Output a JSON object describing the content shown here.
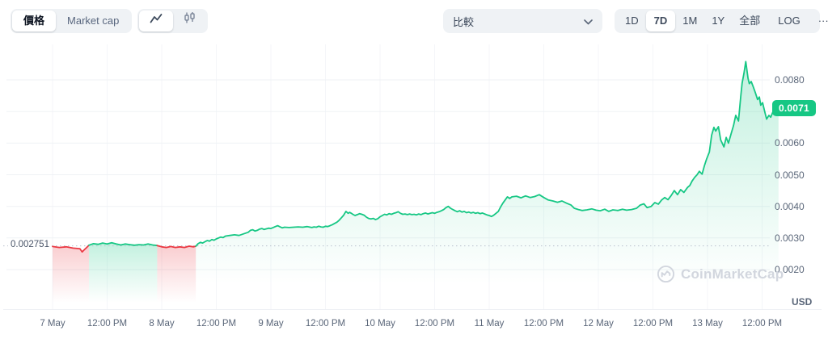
{
  "toolbar": {
    "view_tabs": [
      {
        "label": "價格",
        "active": true
      },
      {
        "label": "Market cap",
        "active": false
      }
    ],
    "chart_type": [
      {
        "icon": "line-chart-icon",
        "active": true
      },
      {
        "icon": "candlestick-icon",
        "active": false
      }
    ],
    "compare": {
      "label": "比較"
    },
    "active_range": "7D",
    "ranges": [
      {
        "label": "1D"
      },
      {
        "label": "7D",
        "active": true
      },
      {
        "label": "1M"
      },
      {
        "label": "1Y"
      },
      {
        "label": "全部"
      },
      {
        "label": "LOG",
        "divider_before": true
      },
      {
        "label": "···",
        "divider_before": true
      }
    ]
  },
  "watermark": {
    "label": "CoinMarketCap"
  },
  "chart_data": {
    "type": "line",
    "title": "7D cryptocurrency price chart",
    "unit": "USD",
    "xlabel": "",
    "ylabel": "",
    "ylim": [
      0.0016,
      0.0088
    ],
    "grid": true,
    "colors": {
      "up": "#16c784",
      "down": "#ea3943"
    },
    "baseline": {
      "value": 0.002751,
      "label": "0.002751"
    },
    "current": {
      "value": 0.0071,
      "label": "0.0071"
    },
    "y_grid": [
      0.008,
      0.007,
      0.006,
      0.005,
      0.004,
      0.003,
      0.002
    ],
    "y_ticks": [
      {
        "label": "0.0080",
        "value": 0.008
      },
      {
        "label": "0.0060",
        "value": 0.006
      },
      {
        "label": "0.0050",
        "value": 0.005
      },
      {
        "label": "0.0040",
        "value": 0.004
      },
      {
        "label": "0.0030",
        "value": 0.003
      },
      {
        "label": "0.0020",
        "value": 0.002
      }
    ],
    "x_ticks": [
      {
        "label": "7 May",
        "t": 0
      },
      {
        "label": "12:00 PM",
        "t": 12
      },
      {
        "label": "8 May",
        "t": 24
      },
      {
        "label": "12:00 PM",
        "t": 36
      },
      {
        "label": "9 May",
        "t": 48
      },
      {
        "label": "12:00 PM",
        "t": 60
      },
      {
        "label": "10 May",
        "t": 72
      },
      {
        "label": "12:00 PM",
        "t": 84
      },
      {
        "label": "11 May",
        "t": 96
      },
      {
        "label": "12:00 PM",
        "t": 108
      },
      {
        "label": "12 May",
        "t": 120
      },
      {
        "label": "12:00 PM",
        "t": 132
      },
      {
        "label": "13 May",
        "t": 144
      },
      {
        "label": "12:00 PM",
        "t": 156
      }
    ],
    "series": [
      {
        "name": "price_usd",
        "t_unit": "hours_since_7_may_00:00",
        "points": [
          [
            0,
            0.00273
          ],
          [
            1.5,
            0.0027
          ],
          [
            3,
            0.00272
          ],
          [
            4.5,
            0.00268
          ],
          [
            6,
            0.00266
          ],
          [
            6.5,
            0.00256
          ],
          [
            7,
            0.00263
          ],
          [
            7.5,
            0.0027
          ],
          [
            8,
            0.00277
          ],
          [
            9,
            0.00282
          ],
          [
            10,
            0.0028
          ],
          [
            11,
            0.00284
          ],
          [
            12,
            0.00281
          ],
          [
            13,
            0.00285
          ],
          [
            14,
            0.00281
          ],
          [
            15,
            0.00278
          ],
          [
            16,
            0.00281
          ],
          [
            17,
            0.00279
          ],
          [
            18,
            0.00277
          ],
          [
            19,
            0.00279
          ],
          [
            20,
            0.00278
          ],
          [
            21,
            0.00281
          ],
          [
            22,
            0.00278
          ],
          [
            23,
            0.00276
          ],
          [
            24,
            0.00272
          ],
          [
            25,
            0.0027
          ],
          [
            26,
            0.00273
          ],
          [
            27,
            0.0027
          ],
          [
            28,
            0.00272
          ],
          [
            29,
            0.0027
          ],
          [
            30,
            0.00274
          ],
          [
            31,
            0.00272
          ],
          [
            31.5,
            0.00274
          ],
          [
            32,
            0.00282
          ],
          [
            32.5,
            0.00286
          ],
          [
            33,
            0.00284
          ],
          [
            33.5,
            0.00288
          ],
          [
            34,
            0.00292
          ],
          [
            34.5,
            0.0029
          ],
          [
            35,
            0.00295
          ],
          [
            35.5,
            0.00293
          ],
          [
            36,
            0.00297
          ],
          [
            36.5,
            0.003
          ],
          [
            37,
            0.00303
          ],
          [
            37.5,
            0.00301
          ],
          [
            38,
            0.00306
          ],
          [
            39,
            0.00308
          ],
          [
            40,
            0.0031
          ],
          [
            41,
            0.00308
          ],
          [
            42,
            0.00313
          ],
          [
            43,
            0.00318
          ],
          [
            43.5,
            0.00324
          ],
          [
            44,
            0.00326
          ],
          [
            44.5,
            0.00322
          ],
          [
            45,
            0.00324
          ],
          [
            45.5,
            0.00328
          ],
          [
            46,
            0.0033
          ],
          [
            46.5,
            0.00327
          ],
          [
            47,
            0.00329
          ],
          [
            47.5,
            0.00331
          ],
          [
            48,
            0.0033
          ],
          [
            48.5,
            0.00333
          ],
          [
            49,
            0.00336
          ],
          [
            49.5,
            0.00339
          ],
          [
            50,
            0.00335
          ],
          [
            50.5,
            0.00332
          ],
          [
            51,
            0.00334
          ],
          [
            52,
            0.00333
          ],
          [
            53,
            0.00334
          ],
          [
            54,
            0.00335
          ],
          [
            55,
            0.00334
          ],
          [
            56,
            0.00336
          ],
          [
            57,
            0.00333
          ],
          [
            57.5,
            0.00335
          ],
          [
            58,
            0.00334
          ],
          [
            58.5,
            0.00337
          ],
          [
            59,
            0.00335
          ],
          [
            59.5,
            0.00334
          ],
          [
            60,
            0.00337
          ],
          [
            60.5,
            0.00336
          ],
          [
            61,
            0.00339
          ],
          [
            61.5,
            0.00342
          ],
          [
            62,
            0.00346
          ],
          [
            62.5,
            0.0035
          ],
          [
            63,
            0.00356
          ],
          [
            63.5,
            0.00364
          ],
          [
            64,
            0.00372
          ],
          [
            64.5,
            0.00384
          ],
          [
            65,
            0.00378
          ],
          [
            65.3,
            0.00381
          ],
          [
            65.7,
            0.00378
          ],
          [
            66,
            0.00375
          ],
          [
            66.5,
            0.00371
          ],
          [
            67,
            0.00374
          ],
          [
            67.5,
            0.00377
          ],
          [
            68,
            0.00375
          ],
          [
            68.5,
            0.00372
          ],
          [
            69,
            0.00366
          ],
          [
            69.5,
            0.00362
          ],
          [
            70,
            0.0036
          ],
          [
            70.5,
            0.00362
          ],
          [
            71,
            0.00358
          ],
          [
            71.5,
            0.00361
          ],
          [
            72,
            0.00367
          ],
          [
            72.5,
            0.00371
          ],
          [
            73,
            0.00375
          ],
          [
            73.5,
            0.00373
          ],
          [
            74,
            0.00377
          ],
          [
            74.5,
            0.00375
          ],
          [
            75,
            0.00378
          ],
          [
            75.5,
            0.0038
          ],
          [
            76,
            0.00383
          ],
          [
            76.5,
            0.00378
          ],
          [
            77,
            0.00375
          ],
          [
            77.5,
            0.00376
          ],
          [
            78,
            0.00374
          ],
          [
            78.5,
            0.00376
          ],
          [
            79,
            0.00374
          ],
          [
            79.5,
            0.00375
          ],
          [
            80,
            0.00373
          ],
          [
            80.5,
            0.00376
          ],
          [
            81,
            0.00374
          ],
          [
            81.5,
            0.00377
          ],
          [
            82,
            0.00379
          ],
          [
            82.5,
            0.00376
          ],
          [
            83,
            0.00378
          ],
          [
            83.5,
            0.0038
          ],
          [
            84,
            0.00378
          ],
          [
            84.5,
            0.00381
          ],
          [
            85,
            0.00383
          ],
          [
            85.5,
            0.00386
          ],
          [
            86,
            0.0039
          ],
          [
            86.5,
            0.00396
          ],
          [
            87,
            0.004
          ],
          [
            87.5,
            0.00394
          ],
          [
            88,
            0.0039
          ],
          [
            88.5,
            0.00386
          ],
          [
            89,
            0.00383
          ],
          [
            89.5,
            0.00386
          ],
          [
            90,
            0.00382
          ],
          [
            90.5,
            0.00384
          ],
          [
            91,
            0.0038
          ],
          [
            91.5,
            0.00382
          ],
          [
            92,
            0.00379
          ],
          [
            92.5,
            0.00381
          ],
          [
            93,
            0.00378
          ],
          [
            93.5,
            0.0038
          ],
          [
            94,
            0.00377
          ],
          [
            94.5,
            0.00379
          ],
          [
            95,
            0.00376
          ],
          [
            95.5,
            0.00373
          ],
          [
            96,
            0.00371
          ],
          [
            96.5,
            0.00368
          ],
          [
            97,
            0.00372
          ],
          [
            97.5,
            0.00378
          ],
          [
            98,
            0.00384
          ],
          [
            98.5,
            0.00398
          ],
          [
            99,
            0.0041
          ],
          [
            99.5,
            0.0042
          ],
          [
            100,
            0.0043
          ],
          [
            100.5,
            0.00425
          ],
          [
            101,
            0.0043
          ],
          [
            102,
            0.00432
          ],
          [
            103,
            0.00427
          ],
          [
            104,
            0.00433
          ],
          [
            105,
            0.00428
          ],
          [
            106,
            0.00431
          ],
          [
            107,
            0.00437
          ],
          [
            108,
            0.00428
          ],
          [
            109,
            0.0042
          ],
          [
            110,
            0.00417
          ],
          [
            111,
            0.00413
          ],
          [
            112,
            0.00417
          ],
          [
            113,
            0.0041
          ],
          [
            114,
            0.00404
          ],
          [
            114.7,
            0.00394
          ],
          [
            115.6,
            0.0039
          ],
          [
            116.4,
            0.00387
          ],
          [
            117.5,
            0.00389
          ],
          [
            118.6,
            0.00392
          ],
          [
            119.5,
            0.00388
          ],
          [
            120.4,
            0.00386
          ],
          [
            121.4,
            0.00391
          ],
          [
            122.3,
            0.00384
          ],
          [
            123.2,
            0.00389
          ],
          [
            124.3,
            0.00387
          ],
          [
            125.3,
            0.00391
          ],
          [
            126.2,
            0.00388
          ],
          [
            127.3,
            0.0039
          ],
          [
            128.4,
            0.00394
          ],
          [
            129.2,
            0.00404
          ],
          [
            130,
            0.00408
          ],
          [
            130.7,
            0.00396
          ],
          [
            131.6,
            0.004
          ],
          [
            132.4,
            0.00412
          ],
          [
            133.2,
            0.00407
          ],
          [
            133.9,
            0.0042
          ],
          [
            134.6,
            0.00428
          ],
          [
            135.3,
            0.00421
          ],
          [
            136,
            0.00434
          ],
          [
            136.7,
            0.0045
          ],
          [
            137.4,
            0.00437
          ],
          [
            138.1,
            0.00453
          ],
          [
            138.8,
            0.00444
          ],
          [
            139.6,
            0.0046
          ],
          [
            140.1,
            0.00466
          ],
          [
            140.6,
            0.0048
          ],
          [
            141.2,
            0.00492
          ],
          [
            141.7,
            0.005
          ],
          [
            142.2,
            0.00511
          ],
          [
            142.8,
            0.00502
          ],
          [
            143.3,
            0.00528
          ],
          [
            143.8,
            0.0055
          ],
          [
            144.4,
            0.00572
          ],
          [
            144.9,
            0.00625
          ],
          [
            145.4,
            0.0065
          ],
          [
            145.8,
            0.00638
          ],
          [
            146.4,
            0.00652
          ],
          [
            146.9,
            0.0061
          ],
          [
            147.6,
            0.00588
          ],
          [
            148.1,
            0.00618
          ],
          [
            148.6,
            0.006
          ],
          [
            149.2,
            0.0063
          ],
          [
            149.7,
            0.00655
          ],
          [
            150.2,
            0.00688
          ],
          [
            150.8,
            0.0067
          ],
          [
            151.3,
            0.00748
          ],
          [
            151.6,
            0.0079
          ],
          [
            152,
            0.0082
          ],
          [
            152.4,
            0.00858
          ],
          [
            152.9,
            0.00805
          ],
          [
            153.2,
            0.00788
          ],
          [
            153.6,
            0.00795
          ],
          [
            154,
            0.0078
          ],
          [
            154.5,
            0.0076
          ],
          [
            155,
            0.00738
          ],
          [
            155.4,
            0.00746
          ],
          [
            155.7,
            0.0072
          ],
          [
            156.1,
            0.00728
          ],
          [
            156.6,
            0.00698
          ],
          [
            157,
            0.00676
          ],
          [
            157.5,
            0.00688
          ],
          [
            157.9,
            0.00682
          ],
          [
            158.4,
            0.007
          ],
          [
            158.8,
            0.00722
          ],
          [
            159.1,
            0.00712
          ],
          [
            159.6,
            0.0071
          ]
        ]
      }
    ]
  }
}
